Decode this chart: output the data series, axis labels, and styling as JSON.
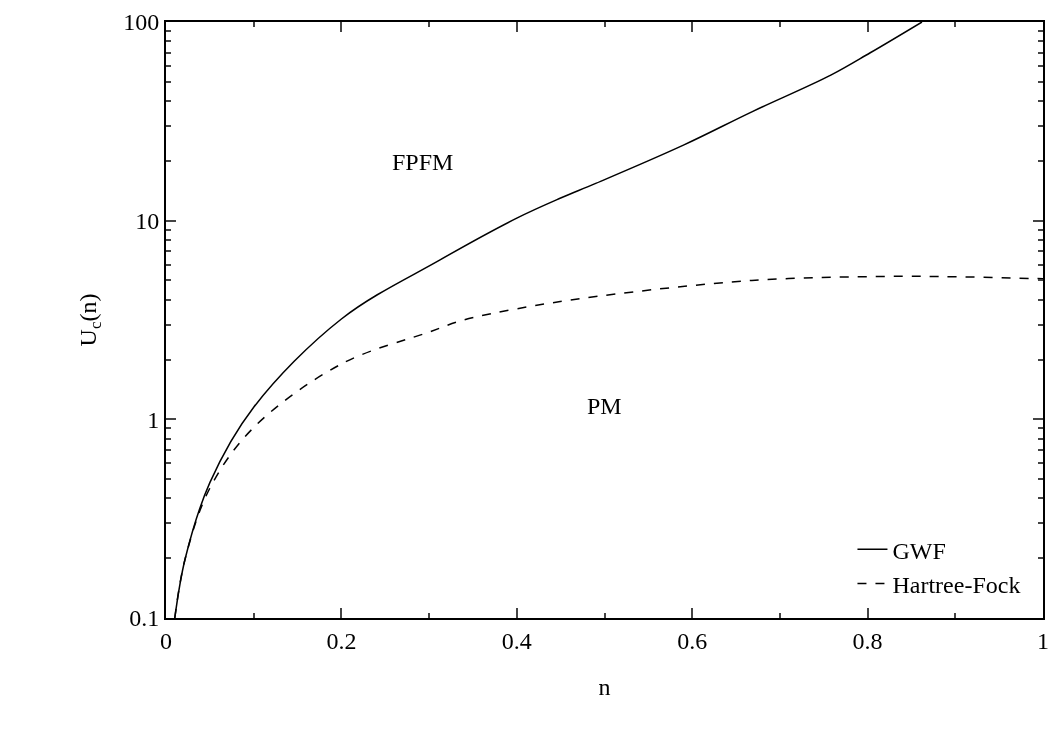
{
  "chart_data": {
    "type": "line",
    "xlabel": "n",
    "ylabel": "U$_{c}$(n)",
    "log": "y",
    "xlim": [
      0,
      1
    ],
    "xticks": [
      0,
      0.2,
      0.4,
      0.6,
      0.8,
      1
    ],
    "ylim": [
      0.1,
      100
    ],
    "yticks": [
      0.1,
      1,
      10,
      100
    ],
    "grid": false,
    "legend": "bottom right",
    "marker": "none",
    "annotations": [
      "FPFM",
      "PM"
    ],
    "series": [
      {
        "name": "GWF",
        "color": "#000000",
        "line_style": "solid",
        "x": [
          0.01,
          0.022,
          0.05,
          0.1,
          0.2,
          0.3125,
          0.4,
          0.45,
          0.49,
          0.59,
          0.668,
          0.758,
          0.803,
          0.862
        ],
        "values": [
          0.1,
          0.2,
          0.48,
          1.15,
          3.2,
          6.35,
          10.3,
          13,
          15.4,
          24,
          35.3,
          54,
          70,
          100
        ]
      },
      {
        "name": "Hartree-Fock",
        "color": "#000000",
        "line_style": "dashed",
        "x": [
          0.01,
          0.022,
          0.05,
          0.1,
          0.2,
          0.3,
          0.339,
          0.4,
          0.49,
          0.668,
          0.824,
          0.9,
          1
        ],
        "values": [
          0.1,
          0.2,
          0.45,
          0.91,
          1.9,
          2.75,
          3.16,
          3.6,
          4.15,
          5.0,
          5.24,
          5.22,
          5.1
        ]
      }
    ]
  }
}
